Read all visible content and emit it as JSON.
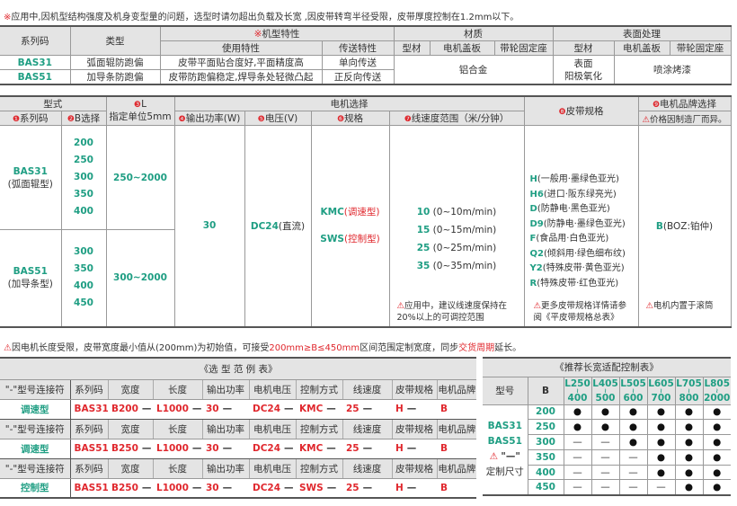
{
  "note_top": {
    "mark": "※",
    "text": "应用中,因机型结构强度及机身变型量的问题，选型时请勿超出负载及长宽 ,因皮带转弯半径受限，皮带厚度控制在1.2mm以下。"
  },
  "spec_table": {
    "h_series": "系列码",
    "h_type": "类型",
    "h_feature_mark": "※",
    "h_feature": "机型特性",
    "h_use": "使用特性",
    "h_transfer": "传送特性",
    "h_material": "材质",
    "h_surface": "表面处理",
    "sub": [
      "型材",
      "电机盖板",
      "带轮固定座",
      "型材",
      "电机盖板",
      "带轮固定座"
    ],
    "rows": [
      {
        "series": "BAS31",
        "type": "弧面辊防跑偏",
        "use": "皮带平面贴合度好,平面精度高",
        "transfer": "单向传送"
      },
      {
        "series": "BAS51",
        "type": "加导条防跑偏",
        "use": "皮带防跑偏稳定,焊导条处轻微凸起",
        "transfer": "正反向传送"
      }
    ],
    "material": "铝合金",
    "surface_profile": "表面\n阳极氧化",
    "surface_other": "喷涂烤漆"
  },
  "select_table": {
    "h_model": "型式",
    "h_motor": "电机选择",
    "h_series": {
      "num": "❶",
      "label": "系列码"
    },
    "h_b": {
      "num": "❷",
      "label": "B选择"
    },
    "h_l": {
      "num": "❸",
      "label": "L",
      "sub": "指定单位5mm"
    },
    "h_power": {
      "num": "❹",
      "label": "输出功率(W)"
    },
    "h_voltage": {
      "num": "❺",
      "label": "电压(V)"
    },
    "h_spec": {
      "num": "❻",
      "label": "规格"
    },
    "h_speed": {
      "num": "❼",
      "label": "线速度范围（米/分钟）"
    },
    "h_belt": {
      "num": "❽",
      "label": "皮带规格"
    },
    "h_brand": {
      "num": "❾",
      "label": "电机品牌选择",
      "warn": "价格因制造厂而异。"
    },
    "series": [
      {
        "code": "BAS31",
        "desc": "(弧面辊型)",
        "b": [
          "200",
          "250",
          "300",
          "350",
          "400"
        ],
        "l": "250~2000"
      },
      {
        "code": "BAS51",
        "desc": "(加导条型)",
        "b": [
          "300",
          "350",
          "400",
          "450"
        ],
        "l": "300~2000"
      }
    ],
    "power": "30",
    "voltage": {
      "code": "DC24",
      "desc": "(直流)"
    },
    "spec": [
      {
        "code": "KMC",
        "desc": "(调速型)"
      },
      {
        "code": "SWS",
        "desc": "(控制型)"
      }
    ],
    "speed": [
      {
        "code": "10",
        "range": "(0~10m/min)"
      },
      {
        "code": "15",
        "range": "(0~15m/min)"
      },
      {
        "code": "25",
        "range": "(0~25m/min)"
      },
      {
        "code": "35",
        "range": "(0~35m/min)"
      }
    ],
    "speed_note": "应用中，建议线速度保持在20%以上的可调控范围",
    "belt": [
      {
        "code": "H",
        "desc": "(一般用·墨绿色亚光)"
      },
      {
        "code": "H6",
        "desc": "(进口·阪东绿亮光)"
      },
      {
        "code": "D",
        "desc": "(防静电·黑色亚光)"
      },
      {
        "code": "D9",
        "desc": "(防静电·墨绿色亚光)"
      },
      {
        "code": "F",
        "desc": "(食品用·白色亚光)"
      },
      {
        "code": "Q2",
        "desc": "(倾斜用·绿色细布纹)"
      },
      {
        "code": "Y2",
        "desc": "(特殊皮带·黄色亚光)"
      },
      {
        "code": "R",
        "desc": "(特殊皮带·红色亚光)"
      }
    ],
    "belt_note": "更多皮带规格详情请参阅《平皮带规格总表》",
    "brand": {
      "code": "B",
      "desc": "(BOZ:铂仲)"
    },
    "brand_note": "电机内置于滚筒"
  },
  "note_mid": {
    "a": "因电机长度受限，皮带宽度最小值从(200mm)为初始值，可接受",
    "b": "200mm≥B≤450mm",
    "c": "区间范围定制宽度，同步",
    "d": "交货周期",
    "e": "延长。"
  },
  "example_table": {
    "title": "《选 型 范 例 表》",
    "headers": [
      "\"-\"型号连接符",
      "系列码",
      "宽度",
      "长度",
      "输出功率",
      "电机电压",
      "控制方式",
      "线速度",
      "皮带规格",
      "电机品牌"
    ],
    "connector": "—",
    "rows": [
      {
        "label": "调速型",
        "values": [
          "BAS31",
          "B200",
          "L1000",
          "30",
          "DC24",
          "KMC",
          "25",
          "H",
          "B"
        ]
      },
      {
        "label": "调速型",
        "values": [
          "BAS51",
          "B250",
          "L1000",
          "30",
          "DC24",
          "KMC",
          "25",
          "H",
          "B"
        ]
      },
      {
        "label": "控制型",
        "values": [
          "BAS51",
          "B250",
          "L1000",
          "30",
          "DC24",
          "SWS",
          "25",
          "H",
          "B"
        ]
      }
    ]
  },
  "size_table": {
    "title": "《推荐长宽适配控制表》",
    "h_model": "型号",
    "h_b": "B",
    "ranges": [
      {
        "from": "L250",
        "to": "400"
      },
      {
        "from": "L405",
        "to": "500"
      },
      {
        "from": "L505",
        "to": "600"
      },
      {
        "from": "L605",
        "to": "700"
      },
      {
        "from": "L705",
        "to": "800"
      },
      {
        "from": "L805",
        "to": "2000"
      }
    ],
    "tilde": "≀",
    "models": [
      "BAS31",
      "BAS51"
    ],
    "custom_note": "\"—\"",
    "custom_label": "定制尺寸",
    "rows": [
      {
        "b": "200",
        "marks": [
          "●",
          "●",
          "●",
          "●",
          "●",
          "●"
        ]
      },
      {
        "b": "250",
        "marks": [
          "●",
          "●",
          "●",
          "●",
          "●",
          "●"
        ]
      },
      {
        "b": "300",
        "marks": [
          "—",
          "—",
          "●",
          "●",
          "●",
          "●"
        ]
      },
      {
        "b": "350",
        "marks": [
          "—",
          "—",
          "—",
          "●",
          "●",
          "●"
        ]
      },
      {
        "b": "400",
        "marks": [
          "—",
          "—",
          "—",
          "●",
          "●",
          "●"
        ]
      },
      {
        "b": "450",
        "marks": [
          "—",
          "—",
          "—",
          "—",
          "●",
          "●"
        ]
      }
    ]
  },
  "colors": {
    "green": "#1f9e83",
    "red": "#e0282e",
    "header": "#e4e4e4"
  }
}
